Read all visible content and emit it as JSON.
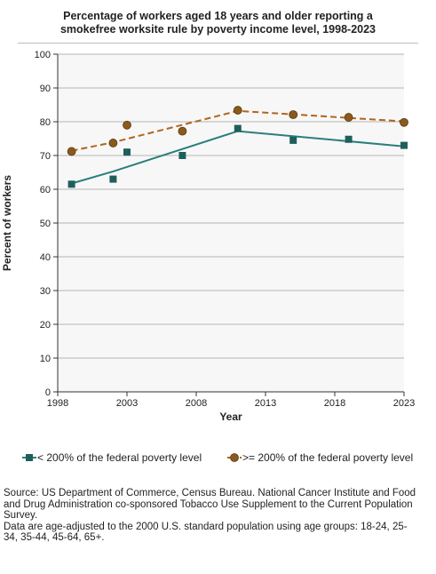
{
  "chart_data": {
    "type": "line",
    "title_line1": "Percentage of workers aged 18 years and older reporting a",
    "title_line2": "smokefree worksite rule by poverty income level, 1998-2023",
    "xlabel": "Year",
    "ylabel": "Percent of workers",
    "xlim": [
      1998,
      2023
    ],
    "ylim": [
      0,
      100
    ],
    "xticks": [
      1998,
      2003,
      2008,
      2013,
      2018,
      2023
    ],
    "yticks": [
      0,
      10,
      20,
      30,
      40,
      50,
      60,
      70,
      80,
      90,
      100
    ],
    "grid": true,
    "legend_position": "bottom",
    "series": [
      {
        "name": "< 200% of the federal poverty level",
        "marker": "square",
        "color": "#1f5f5b",
        "line_color": "#2a7f7a",
        "line_style": "solid",
        "points": [
          [
            1999,
            61.5
          ],
          [
            2002,
            63
          ],
          [
            2003,
            71
          ],
          [
            2007,
            70
          ],
          [
            2011,
            78
          ],
          [
            2015,
            74.5
          ],
          [
            2019,
            74.8
          ],
          [
            2023,
            73
          ]
        ],
        "trend": [
          [
            1999,
            61.7
          ],
          [
            2002,
            65.3
          ],
          [
            2011,
            77.2
          ],
          [
            2023,
            72.7
          ]
        ]
      },
      {
        "name": ">= 200% of the federal poverty level",
        "marker": "circle",
        "color": "#8a5a1c",
        "line_color": "#b0641e",
        "line_style": "dashed",
        "points": [
          [
            1999,
            71.2
          ],
          [
            2002,
            73.7
          ],
          [
            2003,
            79
          ],
          [
            2007,
            77.2
          ],
          [
            2011,
            83.4
          ],
          [
            2015,
            82.1
          ],
          [
            2019,
            81.3
          ],
          [
            2023,
            79.8
          ]
        ],
        "trend": [
          [
            1999,
            71.4
          ],
          [
            2002,
            73.9
          ],
          [
            2011,
            83.2
          ],
          [
            2023,
            80.1
          ]
        ]
      }
    ]
  },
  "source": {
    "line1": "Source: US Department of Commerce, Census Bureau. National Cancer Institute and Food",
    "line2": "and Drug Administration co-sponsored Tobacco Use Supplement to the Current Population",
    "line3": "Survey.",
    "line4": "Data are age-adjusted to the 2000 U.S. standard population using age groups: 18-24, 25-",
    "line5": "34, 35-44, 45-64, 65+."
  }
}
